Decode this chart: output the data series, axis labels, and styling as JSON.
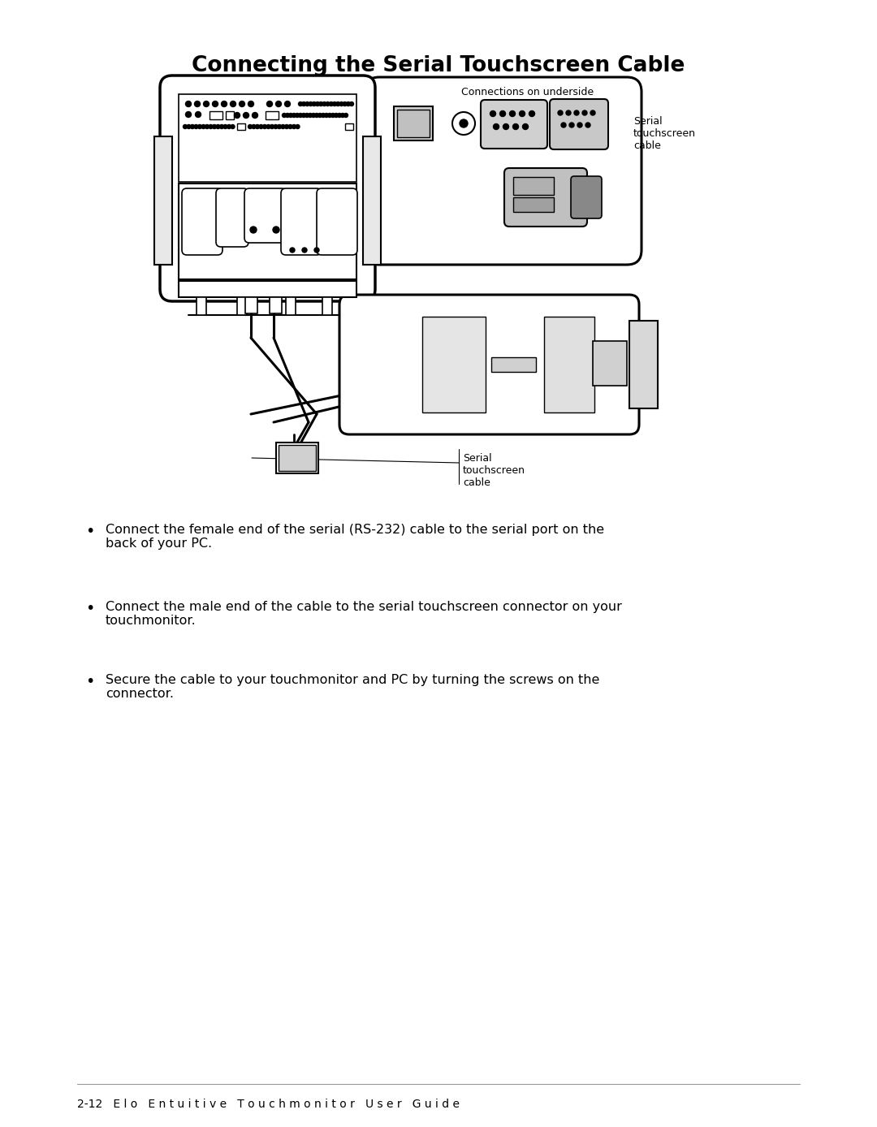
{
  "title": "Connecting the Serial Touchscreen Cable",
  "background_color": "#ffffff",
  "footer_text": "2-12   E l o   E n t u i t i v e   T o u c h m o n i t o r   U s e r   G u i d e",
  "bullet_points": [
    "Connect the female end of the serial (RS-232) cable to the serial port on the\nback of your PC.",
    "Connect the male end of the cable to the serial touchscreen connector on your\ntouchmonitor.",
    "Secure the cable to your touchmonitor and PC by turning the screws on the\nconnector."
  ],
  "label_connections_underside": "Connections on underside",
  "label_serial_top": "Serial\ntouchscreen\ncable",
  "label_serial_bottom": "Serial\ntouchscreen\ncable"
}
